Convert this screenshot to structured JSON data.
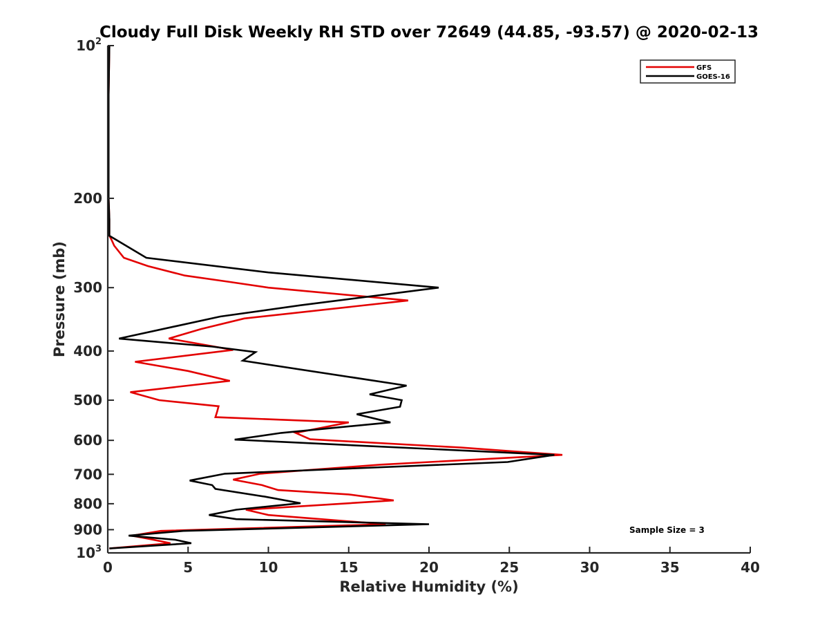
{
  "chart_data": {
    "type": "line",
    "title": "Cloudy Full Disk Weekly RH STD over 72649 (44.85, -93.57) @ 2020-02-13",
    "xlabel": "Relative Humidity (%)",
    "ylabel": "Pressure (mb)",
    "xlim": [
      0,
      40
    ],
    "ylim": [
      100,
      1000
    ],
    "y_scale": "log",
    "y_reversed": true,
    "x_ticks": [
      0,
      5,
      10,
      15,
      20,
      25,
      30,
      35,
      40
    ],
    "y_ticks": [
      {
        "value": 100,
        "label": "10",
        "sup": "2"
      },
      {
        "value": 200,
        "label": "200",
        "sup": ""
      },
      {
        "value": 300,
        "label": "300",
        "sup": ""
      },
      {
        "value": 400,
        "label": "400",
        "sup": ""
      },
      {
        "value": 500,
        "label": "500",
        "sup": ""
      },
      {
        "value": 600,
        "label": "600",
        "sup": ""
      },
      {
        "value": 700,
        "label": "700",
        "sup": ""
      },
      {
        "value": 800,
        "label": "800",
        "sup": ""
      },
      {
        "value": 900,
        "label": "900",
        "sup": ""
      },
      {
        "value": 1000,
        "label": "10",
        "sup": "3"
      }
    ],
    "grid": false,
    "legend_position": "top-right",
    "annotation": "Sample Size = 3",
    "series": [
      {
        "name": "GFS",
        "color": "#e30000",
        "points": [
          [
            0.1,
            100
          ],
          [
            0.05,
            125
          ],
          [
            0.05,
            150
          ],
          [
            0.05,
            175
          ],
          [
            0.05,
            200
          ],
          [
            0.1,
            220
          ],
          [
            0.1,
            237
          ],
          [
            0.25,
            242
          ],
          [
            0.4,
            248
          ],
          [
            1.0,
            262
          ],
          [
            2.5,
            272
          ],
          [
            4.8,
            284
          ],
          [
            7.5,
            292
          ],
          [
            10.0,
            300
          ],
          [
            18.7,
            318
          ],
          [
            8.5,
            345
          ],
          [
            5.8,
            362
          ],
          [
            3.8,
            378
          ],
          [
            7.8,
            398
          ],
          [
            1.7,
            420
          ],
          [
            5.0,
            438
          ],
          [
            7.6,
            458
          ],
          [
            1.4,
            482
          ],
          [
            3.2,
            500
          ],
          [
            6.9,
            514
          ],
          [
            6.8,
            528
          ],
          [
            6.7,
            540
          ],
          [
            15.0,
            553
          ],
          [
            11.7,
            580
          ],
          [
            12.6,
            597
          ],
          [
            22.0,
            620
          ],
          [
            28.3,
            641
          ],
          [
            17.0,
            670
          ],
          [
            9.5,
            698
          ],
          [
            7.8,
            717
          ],
          [
            9.6,
            735
          ],
          [
            10.6,
            752
          ],
          [
            15.0,
            767
          ],
          [
            17.8,
            788
          ],
          [
            8.6,
            822
          ],
          [
            10.0,
            842
          ],
          [
            17.3,
            878
          ],
          [
            3.3,
            905
          ],
          [
            1.5,
            925
          ],
          [
            2.7,
            940
          ],
          [
            3.9,
            957
          ],
          [
            0.1,
            980
          ]
        ]
      },
      {
        "name": "GOES-16",
        "color": "#000000",
        "points": [
          [
            0.1,
            100
          ],
          [
            0.05,
            125
          ],
          [
            0.05,
            150
          ],
          [
            0.05,
            175
          ],
          [
            0.05,
            200
          ],
          [
            0.1,
            220
          ],
          [
            0.1,
            237
          ],
          [
            2.4,
            262
          ],
          [
            10.0,
            280
          ],
          [
            20.6,
            300
          ],
          [
            12.0,
            325
          ],
          [
            7.0,
            342
          ],
          [
            0.7,
            378
          ],
          [
            6.5,
            392
          ],
          [
            9.2,
            402
          ],
          [
            8.4,
            418
          ],
          [
            18.6,
            468
          ],
          [
            16.3,
            487
          ],
          [
            18.3,
            500
          ],
          [
            18.2,
            515
          ],
          [
            15.5,
            533
          ],
          [
            17.6,
            553
          ],
          [
            10.8,
            580
          ],
          [
            7.9,
            598
          ],
          [
            27.8,
            641
          ],
          [
            24.9,
            662
          ],
          [
            7.3,
            698
          ],
          [
            5.1,
            720
          ],
          [
            6.5,
            735
          ],
          [
            6.7,
            748
          ],
          [
            9.8,
            775
          ],
          [
            12.0,
            798
          ],
          [
            8.0,
            822
          ],
          [
            6.3,
            842
          ],
          [
            8.0,
            858
          ],
          [
            20.0,
            878
          ],
          [
            4.7,
            905
          ],
          [
            1.3,
            925
          ],
          [
            4.2,
            942
          ],
          [
            5.2,
            957
          ],
          [
            0.1,
            980
          ]
        ]
      }
    ]
  }
}
